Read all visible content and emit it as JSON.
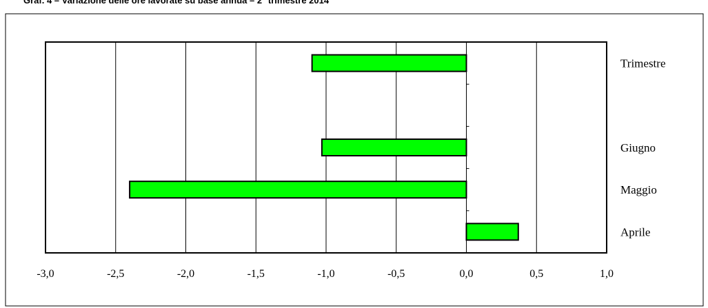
{
  "header": {
    "title": "Graf. 4 – Variazione delle ore lavorate su base annua – 2° trimestre 2014"
  },
  "chart_data": {
    "type": "bar",
    "orientation": "horizontal",
    "title": "",
    "xlabel": "",
    "ylabel": "",
    "categories": [
      "Trimestre",
      "",
      "Giugno",
      "Maggio",
      "Aprile"
    ],
    "values": [
      -1.1,
      null,
      -1.03,
      -2.4,
      0.37
    ],
    "xlim": [
      -3.0,
      1.0
    ],
    "xticks": [
      "-3,0",
      "-2,5",
      "-2,0",
      "-1,5",
      "-1,0",
      "-0,5",
      "0,0",
      "0,5",
      "1,0"
    ],
    "xtick_values": [
      -3.0,
      -2.5,
      -2.0,
      -1.5,
      -1.0,
      -0.5,
      0.0,
      0.5,
      1.0
    ],
    "grid": "vertical",
    "bar_color": "#00ff00",
    "bar_edge_color": "#000000"
  }
}
